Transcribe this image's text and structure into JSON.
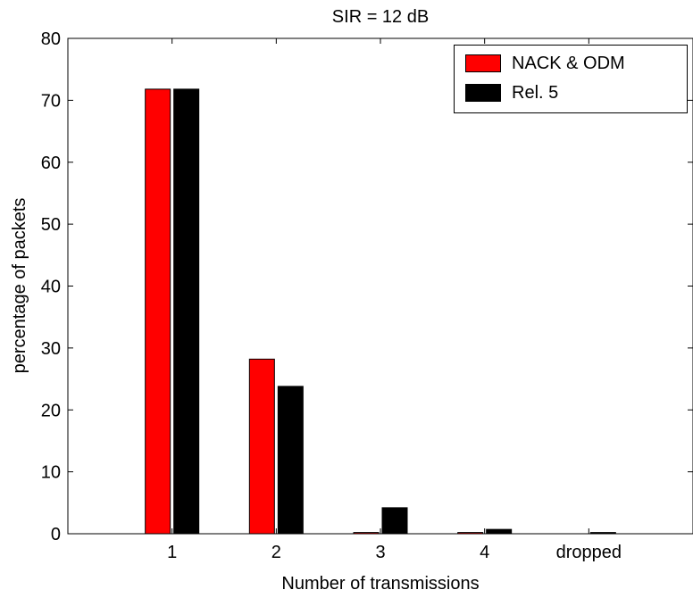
{
  "chart_data": {
    "type": "bar",
    "title": "SIR = 12 dB",
    "xlabel": "Number of transmissions",
    "ylabel": "percentage of packets",
    "categories": [
      "1",
      "2",
      "3",
      "4",
      "dropped"
    ],
    "ylim": [
      0,
      80
    ],
    "yticks": [
      0,
      10,
      20,
      30,
      40,
      50,
      60,
      70,
      80
    ],
    "grid": false,
    "legend_position": "top-right",
    "series": [
      {
        "name": "NACK & ODM",
        "color": "#ff0000",
        "values": [
          71.8,
          28.2,
          0.2,
          0.2,
          0
        ]
      },
      {
        "name": "Rel. 5",
        "color": "#000000",
        "values": [
          71.8,
          23.8,
          4.2,
          0.7,
          0.2
        ]
      }
    ]
  }
}
